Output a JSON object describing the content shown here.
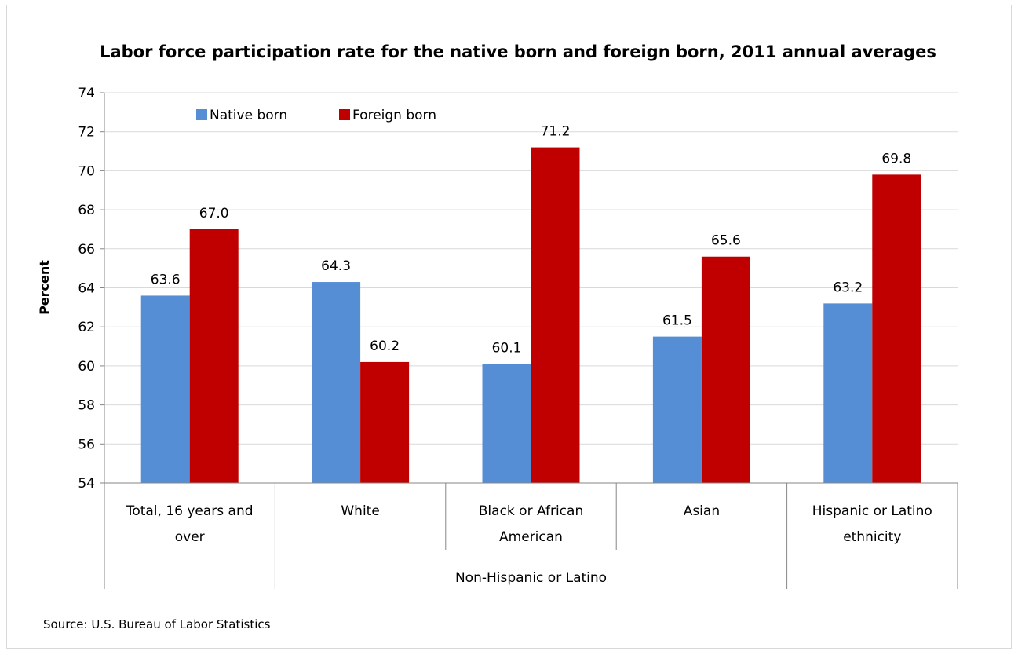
{
  "chart_data": {
    "type": "bar",
    "title": "Labor force participation rate for the native born and foreign born, 2011 annual averages",
    "ylabel": "Percent",
    "xlabel": "",
    "ylim": [
      54,
      74
    ],
    "yticks": [
      54,
      56,
      58,
      60,
      62,
      64,
      66,
      68,
      70,
      72,
      74
    ],
    "grid": true,
    "legend_position": "top-left",
    "categories": [
      [
        "Total, 16 years and",
        "over"
      ],
      [
        "White"
      ],
      [
        "Black or African",
        "American"
      ],
      [
        "Asian"
      ],
      [
        "Hispanic or Latino",
        "ethnicity"
      ]
    ],
    "category_group": {
      "label": "Non-Hispanic or Latino",
      "members": [
        1,
        2,
        3
      ]
    },
    "series": [
      {
        "name": "Native born",
        "color": "#558ed5",
        "values": [
          63.6,
          64.3,
          60.1,
          61.5,
          63.2
        ],
        "labels": [
          "63.6",
          "64.3",
          "60.1",
          "61.5",
          "63.2"
        ]
      },
      {
        "name": "Foreign born",
        "color": "#c00000",
        "values": [
          67.0,
          60.2,
          71.2,
          65.6,
          69.8
        ],
        "labels": [
          "67.0",
          "60.2",
          "71.2",
          "65.6",
          "69.8"
        ]
      }
    ],
    "source": "Source: U.S. Bureau of Labor Statistics"
  }
}
